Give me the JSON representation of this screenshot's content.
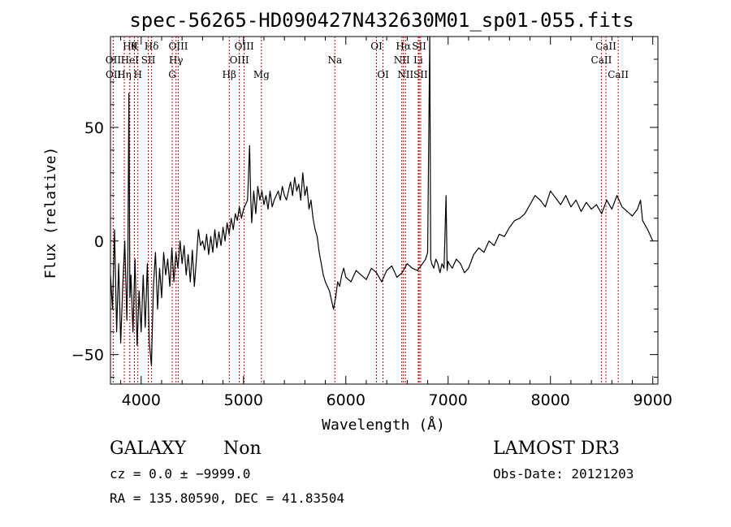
{
  "chart_data": {
    "type": "line",
    "title": "spec-56265-HD090427N432630M01_sp01-055.fits",
    "xlabel": "Wavelength (Å)",
    "ylabel": "Flux (relative)",
    "xlim": [
      3700,
      9050
    ],
    "ylim": [
      -63,
      90
    ],
    "xticks": [
      4000,
      5000,
      6000,
      7000,
      8000,
      9000
    ],
    "yticks": [
      -50,
      0,
      50
    ],
    "grid": false,
    "series": [
      {
        "x": [
          3700,
          3720,
          3740,
          3760,
          3780,
          3800,
          3820,
          3840,
          3860,
          3870,
          3880,
          3890,
          3900,
          3920,
          3940,
          3960,
          3980,
          4000,
          4020,
          4040,
          4060,
          4080,
          4100,
          4120,
          4140,
          4160,
          4180,
          4200,
          4220,
          4240,
          4260,
          4280,
          4300,
          4320,
          4340,
          4360,
          4380,
          4400,
          4420,
          4440,
          4460,
          4480,
          4500,
          4520,
          4540,
          4560,
          4580,
          4600,
          4620,
          4640,
          4660,
          4680,
          4700,
          4720,
          4740,
          4760,
          4780,
          4800,
          4820,
          4840,
          4860,
          4880,
          4900,
          4920,
          4940,
          4960,
          4980,
          5000,
          5020,
          5040,
          5060,
          5070,
          5080,
          5100,
          5120,
          5140,
          5160,
          5180,
          5200,
          5220,
          5240,
          5260,
          5280,
          5300,
          5320,
          5340,
          5360,
          5380,
          5400,
          5420,
          5440,
          5460,
          5480,
          5500,
          5520,
          5540,
          5560,
          5580,
          5600,
          5620,
          5640,
          5660,
          5680,
          5700,
          5720,
          5740,
          5760,
          5780,
          5800,
          5820,
          5840,
          5860,
          5880,
          5900,
          5920,
          5940,
          5960,
          5980,
          6000,
          6050,
          6100,
          6150,
          6200,
          6250,
          6300,
          6350,
          6400,
          6450,
          6500,
          6550,
          6600,
          6650,
          6700,
          6750,
          6780,
          6800,
          6820,
          6830,
          6840,
          6860,
          6880,
          6900,
          6920,
          6940,
          6960,
          6980,
          6990,
          7000,
          7010,
          7040,
          7080,
          7120,
          7160,
          7200,
          7250,
          7300,
          7350,
          7400,
          7450,
          7500,
          7550,
          7600,
          7650,
          7700,
          7750,
          7800,
          7850,
          7900,
          7950,
          8000,
          8050,
          8100,
          8150,
          8200,
          8250,
          8300,
          8350,
          8400,
          8450,
          8500,
          8550,
          8600,
          8650,
          8700,
          8750,
          8800,
          8850,
          8880,
          8900,
          8950,
          9000
        ],
        "y": [
          -15,
          -30,
          5,
          -40,
          -10,
          -45,
          -20,
          0,
          -35,
          -10,
          65,
          -25,
          -15,
          -40,
          -8,
          -46,
          -22,
          -40,
          -15,
          -38,
          -10,
          -45,
          -55,
          -20,
          -5,
          -30,
          -12,
          -25,
          -5,
          -15,
          -8,
          -20,
          -3,
          -18,
          -5,
          -12,
          0,
          -10,
          -2,
          -15,
          -6,
          -18,
          -4,
          -20,
          -8,
          5,
          -2,
          0,
          -4,
          3,
          -6,
          2,
          -5,
          5,
          -3,
          4,
          -2,
          6,
          0,
          8,
          3,
          10,
          5,
          12,
          9,
          15,
          10,
          14,
          16,
          18,
          42,
          20,
          8,
          22,
          12,
          24,
          18,
          22,
          16,
          20,
          14,
          22,
          15,
          18,
          20,
          22,
          18,
          24,
          20,
          18,
          22,
          26,
          20,
          28,
          22,
          25,
          18,
          30,
          20,
          24,
          14,
          18,
          10,
          5,
          2,
          -5,
          -10,
          -15,
          -18,
          -20,
          -22,
          -26,
          -30,
          -25,
          -18,
          -20,
          -15,
          -12,
          -16,
          -18,
          -13,
          -15,
          -17,
          -12,
          -14,
          -18,
          -13,
          -11,
          -16,
          -14,
          -10,
          -12,
          -13,
          -10,
          -8,
          -5,
          90,
          -8,
          -10,
          -12,
          -8,
          -10,
          -14,
          -10,
          -12,
          20,
          -13,
          -9,
          -10,
          -12,
          -8,
          -10,
          -14,
          -12,
          -6,
          -3,
          -5,
          0,
          -2,
          3,
          2,
          6,
          9,
          10,
          12,
          16,
          20,
          18,
          15,
          22,
          19,
          16,
          20,
          15,
          18,
          13,
          17,
          14,
          16,
          12,
          18,
          14,
          20,
          15,
          13,
          11,
          14,
          18,
          9,
          5,
          0
        ]
      }
    ],
    "line_labels": [
      {
        "text": "Hθ",
        "x": 3890,
        "row": 1
      },
      {
        "text": "K",
        "x": 3934,
        "row": 1
      },
      {
        "text": "Hδ",
        "x": 4102,
        "row": 1
      },
      {
        "text": "OIII",
        "x": 4363,
        "row": 1
      },
      {
        "text": "OIII",
        "x": 5007,
        "row": 1
      },
      {
        "text": "OI",
        "x": 6300,
        "row": 1
      },
      {
        "text": "Hα",
        "x": 6563,
        "row": 1
      },
      {
        "text": "SII",
        "x": 6717,
        "row": 1
      },
      {
        "text": "CaII",
        "x": 8542,
        "row": 1
      },
      {
        "text": "OII",
        "x": 3727,
        "row": 2
      },
      {
        "text": "HeI",
        "x": 3889,
        "row": 2
      },
      {
        "text": "SII",
        "x": 4070,
        "row": 2
      },
      {
        "text": "Hγ",
        "x": 4341,
        "row": 2
      },
      {
        "text": "OIII",
        "x": 4959,
        "row": 2
      },
      {
        "text": "Na",
        "x": 5893,
        "row": 2
      },
      {
        "text": "NII",
        "x": 6548,
        "row": 2
      },
      {
        "text": "Li",
        "x": 6708,
        "row": 2
      },
      {
        "text": "CaII",
        "x": 8498,
        "row": 2
      },
      {
        "text": "OII",
        "x": 3729,
        "row": 3
      },
      {
        "text": "Hη",
        "x": 3835,
        "row": 3
      },
      {
        "text": "H",
        "x": 3968,
        "row": 3
      },
      {
        "text": "G",
        "x": 4304,
        "row": 3
      },
      {
        "text": "Hβ",
        "x": 4861,
        "row": 3
      },
      {
        "text": "Mg",
        "x": 5175,
        "row": 3
      },
      {
        "text": "OI",
        "x": 6364,
        "row": 3
      },
      {
        "text": "NII",
        "x": 6583,
        "row": 3
      },
      {
        "text": "SII",
        "x": 6731,
        "row": 3
      },
      {
        "text": "CaII",
        "x": 8662,
        "row": 3
      }
    ],
    "marker_lines_x": [
      3727,
      3835,
      3889,
      3934,
      3968,
      4070,
      4102,
      4304,
      4341,
      4363,
      4861,
      4959,
      5007,
      5175,
      5893,
      6300,
      6364,
      6548,
      6563,
      6583,
      6708,
      6717,
      6731,
      8498,
      8542,
      8662
    ]
  },
  "info": {
    "object_type": "GALAXY",
    "subclass": "Non",
    "cz_line": "cz = 0.0 ± −9999.0",
    "radec_line": "RA = 135.80590, DEC =  41.83504",
    "survey": "LAMOST DR3",
    "obs_date": "Obs-Date: 20121203"
  },
  "colors": {
    "background": "#ffffff",
    "foreground": "#000000",
    "marker_lines": "#cc0000"
  }
}
